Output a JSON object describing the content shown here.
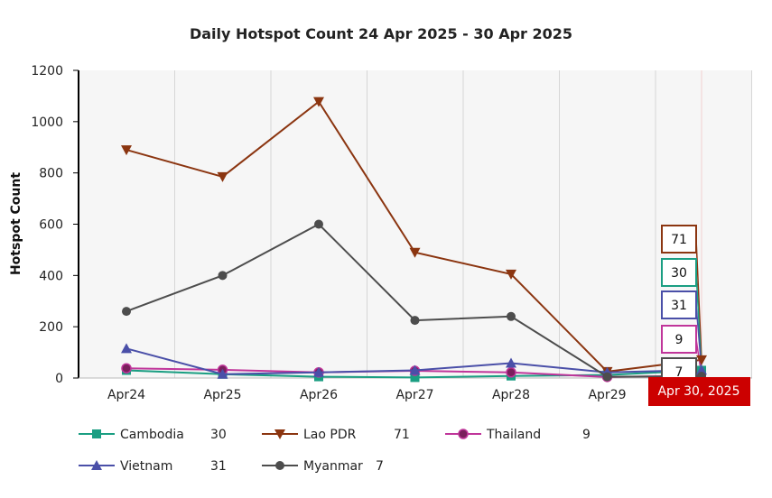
{
  "chart_data": {
    "type": "line",
    "title": "Daily Hotspot Count 24 Apr 2025 - 30 Apr 2025",
    "ylabel": "Hotspot Count",
    "xlabel": "",
    "ylim": [
      0,
      1200
    ],
    "yticks": [
      "0",
      "200",
      "400",
      "600",
      "800",
      "1000",
      "1200"
    ],
    "categories": [
      "Apr24",
      "Apr25",
      "Apr26",
      "Apr27",
      "Apr28",
      "Apr29",
      "Apr30"
    ],
    "visible_x_labels": [
      "Apr24",
      "Apr25",
      "Apr26",
      "Apr27",
      "Apr28",
      "Apr29"
    ],
    "highlight_label": "Apr 30, 2025",
    "grid": true,
    "legend_position": "bottom",
    "series": [
      {
        "name": "Cambodia",
        "color": "#1a9e82",
        "marker": "square",
        "values": [
          30,
          15,
          5,
          2,
          8,
          12,
          30
        ],
        "latest_label": "30"
      },
      {
        "name": "Lao PDR",
        "color": "#8b3510",
        "marker": "triangle-down",
        "values": [
          890,
          785,
          1078,
          490,
          405,
          25,
          71
        ],
        "latest_label": "71"
      },
      {
        "name": "Thailand",
        "color": "#c0359a",
        "marker": "circle",
        "values": [
          38,
          32,
          22,
          28,
          22,
          4,
          9
        ],
        "latest_label": "9"
      },
      {
        "name": "Vietnam",
        "color": "#4a4fa8",
        "marker": "triangle-up",
        "values": [
          115,
          15,
          22,
          30,
          58,
          22,
          31
        ],
        "latest_label": "31"
      },
      {
        "name": "Myanmar",
        "color": "#4d4d4d",
        "marker": "circle",
        "values": [
          260,
          400,
          600,
          225,
          240,
          5,
          7
        ],
        "latest_label": "7"
      }
    ]
  }
}
